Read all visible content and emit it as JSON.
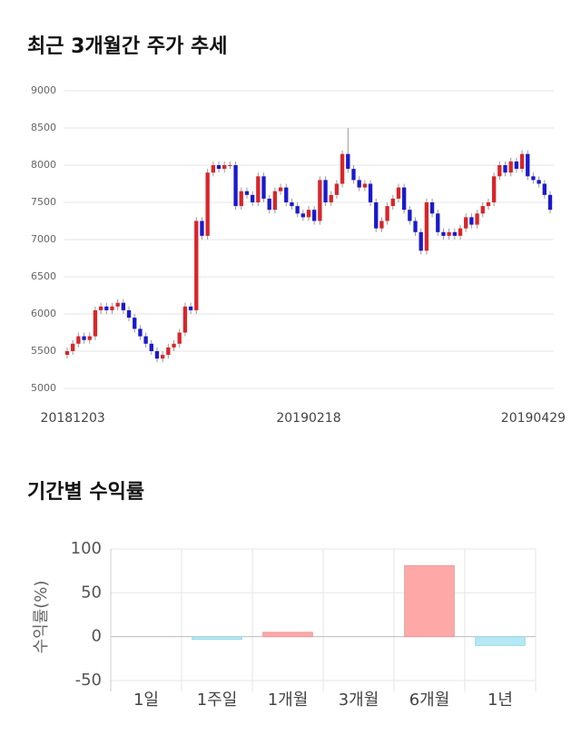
{
  "chart_data": [
    {
      "type": "candlestick",
      "title": "최근 3개월간 주가 추세",
      "categories": [
        null,
        "20181203",
        null,
        null,
        null,
        null,
        null,
        null,
        null,
        null,
        null,
        null,
        null,
        null,
        null,
        null,
        null,
        null,
        null,
        null,
        null,
        null,
        null,
        null,
        null,
        null,
        null,
        null,
        null,
        null,
        null,
        null,
        null,
        null,
        null,
        null,
        null,
        null,
        null,
        null,
        null,
        null,
        null,
        "20190218",
        null,
        null,
        null,
        null,
        null,
        null,
        null,
        null,
        null,
        null,
        null,
        null,
        null,
        null,
        null,
        null,
        null,
        null,
        null,
        null,
        null,
        null,
        null,
        null,
        null,
        null,
        null,
        null,
        null,
        null,
        null,
        null,
        null,
        null,
        null,
        null,
        null,
        null,
        null,
        "20190429",
        null,
        null,
        null
      ],
      "open": [
        5450,
        5500,
        5600,
        5700,
        5650,
        5700,
        6050,
        6100,
        6050,
        6100,
        6150,
        6050,
        5950,
        5800,
        5700,
        5600,
        5500,
        5400,
        5450,
        5550,
        5600,
        5750,
        6100,
        6050,
        7250,
        7050,
        7900,
        8000,
        7950,
        8000,
        8000,
        7450,
        7650,
        7600,
        7500,
        7850,
        7550,
        7400,
        7650,
        7700,
        7500,
        7450,
        7350,
        7300,
        7400,
        7250,
        7800,
        7500,
        7600,
        7750,
        8150,
        7950,
        7800,
        7700,
        7750,
        7500,
        7150,
        7250,
        7450,
        7550,
        7700,
        7400,
        7250,
        7100,
        6850,
        7500,
        7350,
        7100,
        7050,
        7100,
        7050,
        7150,
        7300,
        7200,
        7350,
        7450,
        7500,
        7850,
        8000,
        7900,
        8050,
        7950,
        8150,
        7850,
        7800,
        7750,
        7600
      ],
      "close": [
        5500,
        5600,
        5700,
        5650,
        5700,
        6050,
        6100,
        6050,
        6100,
        6150,
        6050,
        5950,
        5800,
        5700,
        5600,
        5500,
        5400,
        5450,
        5550,
        5600,
        5750,
        6100,
        6050,
        7250,
        7050,
        7900,
        8000,
        7950,
        8000,
        8000,
        7450,
        7650,
        7600,
        7500,
        7850,
        7550,
        7400,
        7650,
        7700,
        7500,
        7450,
        7350,
        7300,
        7400,
        7250,
        7800,
        7500,
        7600,
        7750,
        8150,
        7950,
        7800,
        7700,
        7750,
        7500,
        7150,
        7250,
        7450,
        7550,
        7700,
        7400,
        7250,
        7100,
        6850,
        7500,
        7350,
        7100,
        7050,
        7100,
        7050,
        7150,
        7300,
        7200,
        7350,
        7450,
        7500,
        7850,
        8000,
        7900,
        8050,
        7950,
        8150,
        7850,
        7800,
        7750,
        7600,
        7400
      ],
      "high": [
        5550,
        5650,
        5750,
        5750,
        5750,
        6100,
        6150,
        6150,
        6150,
        6200,
        6200,
        6100,
        6000,
        5850,
        5750,
        5650,
        5550,
        5500,
        5600,
        5650,
        5800,
        6150,
        6150,
        7300,
        7300,
        7950,
        8050,
        8050,
        8050,
        8050,
        8050,
        7700,
        7700,
        7650,
        7900,
        7900,
        7600,
        7700,
        7750,
        7750,
        7550,
        7500,
        7400,
        7450,
        7450,
        7850,
        7850,
        7650,
        7800,
        8200,
        8500,
        8000,
        7850,
        7800,
        7800,
        7550,
        7300,
        7500,
        7600,
        7750,
        7750,
        7450,
        7300,
        7150,
        7550,
        7550,
        7400,
        7150,
        7150,
        7150,
        7200,
        7350,
        7350,
        7400,
        7500,
        7550,
        7900,
        8050,
        8050,
        8100,
        8100,
        8200,
        8200,
        7900,
        7850,
        7800,
        7650
      ],
      "low": [
        5400,
        5450,
        5550,
        5600,
        5600,
        5650,
        6000,
        6000,
        6000,
        6050,
        6000,
        5900,
        5750,
        5650,
        5550,
        5450,
        5350,
        5350,
        5400,
        5500,
        5550,
        5700,
        6000,
        6000,
        7000,
        7000,
        7850,
        7900,
        7900,
        7950,
        7400,
        7400,
        7550,
        7450,
        7450,
        7500,
        7350,
        7350,
        7600,
        7450,
        7400,
        7300,
        7250,
        7250,
        7200,
        7200,
        7450,
        7450,
        7550,
        7700,
        7900,
        7750,
        7650,
        7650,
        7450,
        7100,
        7100,
        7200,
        7400,
        7500,
        7350,
        7200,
        7050,
        6800,
        6800,
        7300,
        7050,
        7000,
        7000,
        7000,
        7000,
        7100,
        7150,
        7150,
        7300,
        7400,
        7450,
        7800,
        7850,
        7850,
        7900,
        7900,
        7800,
        7750,
        7700,
        7550,
        7350
      ],
      "up_color": "#d8262a",
      "down_color": "#1a1acc",
      "ylim": [
        5000,
        9000
      ],
      "yticks": [
        5000,
        5500,
        6000,
        6500,
        7000,
        7500,
        8000,
        8500,
        9000
      ],
      "grid": true
    },
    {
      "type": "bar",
      "title": "기간별 수익률",
      "ylabel": "수익률(%)",
      "categories": [
        "1일",
        "1주일",
        "1개월",
        "3개월",
        "6개월",
        "1년"
      ],
      "values": [
        0,
        -3,
        5,
        0,
        81,
        -10
      ],
      "positive_color": "#ffa8a8",
      "negative_color": "#b4e8f4",
      "ylim": [
        -50,
        100
      ],
      "yticks": [
        -50,
        0,
        50,
        100
      ],
      "grid": true
    }
  ]
}
